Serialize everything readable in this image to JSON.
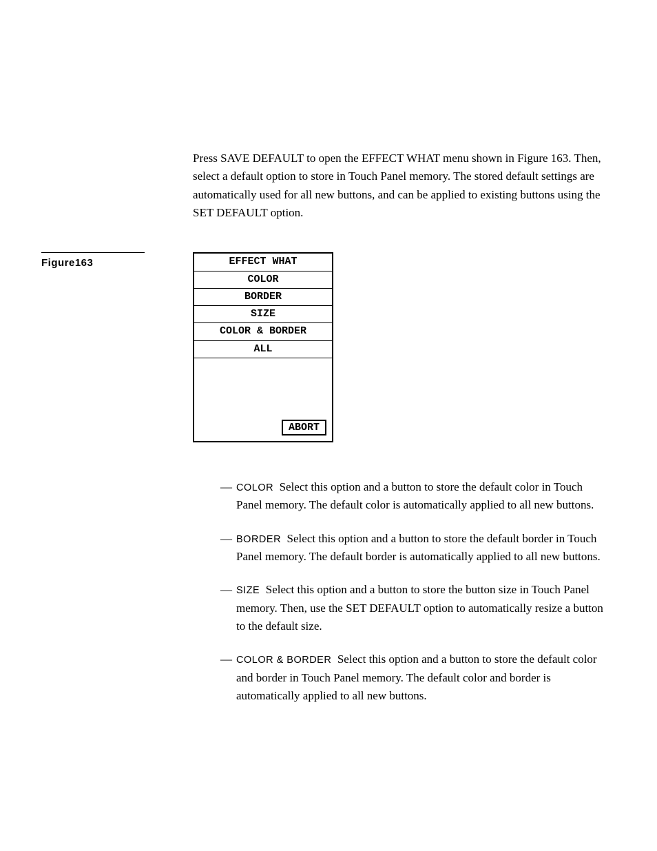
{
  "intro": "Press SAVE DEFAULT to open the EFFECT WHAT menu shown in Figure 163. Then, select a default option to store in Touch Panel memory. The stored default settings are automatically used for all new buttons, and can be applied to existing buttons using the SET DEFAULT option.",
  "figure_label": "Figure163",
  "menu": {
    "title": "EFFECT WHAT",
    "items": [
      "COLOR",
      "BORDER",
      "SIZE",
      "COLOR & BORDER",
      "ALL"
    ],
    "abort": "ABORT"
  },
  "options": [
    {
      "name": "COLOR",
      "desc": "Select this option and a button to store the default color in Touch Panel memory. The default color is automatically applied to all new buttons."
    },
    {
      "name": "BORDER",
      "desc": "Select this option and a button to store the default border in Touch Panel memory. The default border is automatically applied to all new buttons."
    },
    {
      "name": "SIZE",
      "desc": "Select this option and a button to store the button size in Touch Panel memory. Then, use the SET DEFAULT option to automatically resize a button to the default size."
    },
    {
      "name": "COLOR & BORDER",
      "desc": "Select this option and a button to store the default color and border in Touch Panel memory. The default color and border is automatically applied to all new buttons."
    }
  ],
  "colors": {
    "background": "#ffffff",
    "text": "#000000",
    "border": "#000000"
  },
  "typography": {
    "body_font": "Georgia, Times New Roman, serif",
    "body_size_pt": 12,
    "label_font": "Arial, Helvetica, sans-serif",
    "mono_font": "Courier New, monospace"
  }
}
